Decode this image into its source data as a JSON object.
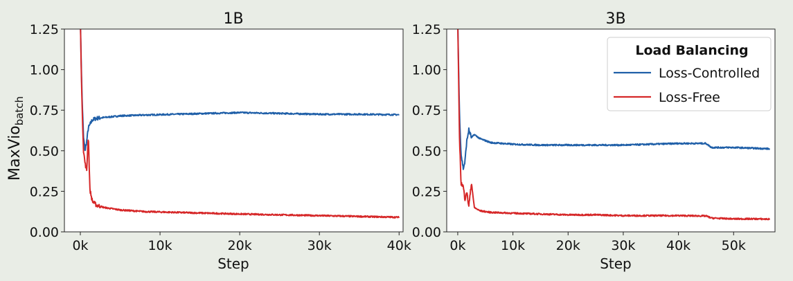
{
  "figure": {
    "ylabel_main": "MaxVio",
    "ylabel_sub": "batch"
  },
  "legend": {
    "title": "Load Balancing"
  },
  "colors": {
    "loss_controlled": "#1f5fa8",
    "loss_free": "#d62728",
    "background": "#e9ede6"
  },
  "chart_data": [
    {
      "type": "line",
      "title": "1B",
      "xlabel": "Step",
      "ylabel": "MaxVio_batch",
      "xlim": [
        -2000,
        40500
      ],
      "ylim": [
        0,
        1.25
      ],
      "xticks": [
        0,
        10000,
        20000,
        30000,
        40000
      ],
      "xtick_labels": [
        "0k",
        "10k",
        "20k",
        "30k",
        "40k"
      ],
      "yticks": [
        0,
        0.25,
        0.5,
        0.75,
        1.0,
        1.25
      ],
      "ytick_labels": [
        "0.00",
        "0.25",
        "0.50",
        "0.75",
        "1.00",
        "1.25"
      ],
      "grid": false,
      "series": [
        {
          "name": "Loss-Controlled",
          "x": [
            0,
            200,
            400,
            600,
            800,
            1000,
            1200,
            1500,
            2000,
            3000,
            5000,
            8000,
            12000,
            16000,
            20000,
            25000,
            30000,
            35000,
            40000
          ],
          "y": [
            1.3,
            0.85,
            0.58,
            0.5,
            0.56,
            0.64,
            0.66,
            0.69,
            0.7,
            0.705,
            0.715,
            0.72,
            0.725,
            0.73,
            0.735,
            0.73,
            0.725,
            0.725,
            0.722
          ]
        },
        {
          "name": "Loss-Free",
          "x": [
            0,
            200,
            400,
            600,
            800,
            1000,
            1200,
            1500,
            2000,
            3000,
            5000,
            8000,
            12000,
            16000,
            20000,
            25000,
            30000,
            35000,
            40000
          ],
          "y": [
            1.3,
            0.8,
            0.5,
            0.42,
            0.38,
            0.6,
            0.26,
            0.19,
            0.165,
            0.15,
            0.135,
            0.125,
            0.12,
            0.115,
            0.11,
            0.105,
            0.1,
            0.095,
            0.09
          ]
        }
      ]
    },
    {
      "type": "line",
      "title": "3B",
      "xlabel": "Step",
      "ylabel": "",
      "xlim": [
        -2000,
        57500
      ],
      "ylim": [
        0,
        1.25
      ],
      "xticks": [
        0,
        10000,
        20000,
        30000,
        40000,
        50000
      ],
      "xtick_labels": [
        "0k",
        "10k",
        "20k",
        "30k",
        "40k",
        "50k"
      ],
      "yticks": [
        0,
        0.25,
        0.5,
        0.75,
        1.0,
        1.25
      ],
      "ytick_labels": [
        "0.00",
        "0.25",
        "0.50",
        "0.75",
        "1.00",
        "1.25"
      ],
      "grid": false,
      "legend": {
        "placement": "top-right",
        "title": "Load Balancing"
      },
      "series": [
        {
          "name": "Loss-Controlled",
          "x": [
            0,
            300,
            600,
            1000,
            1300,
            1600,
            2000,
            2500,
            3000,
            4000,
            6000,
            10000,
            15000,
            20000,
            25000,
            30000,
            35000,
            40000,
            44000,
            45000,
            46000,
            50000,
            54000,
            56500
          ],
          "y": [
            1.3,
            0.75,
            0.48,
            0.39,
            0.43,
            0.55,
            0.63,
            0.58,
            0.6,
            0.575,
            0.55,
            0.54,
            0.535,
            0.535,
            0.535,
            0.535,
            0.54,
            0.545,
            0.545,
            0.545,
            0.52,
            0.52,
            0.515,
            0.512
          ]
        },
        {
          "name": "Loss-Free",
          "x": [
            0,
            300,
            600,
            1000,
            1300,
            1600,
            2000,
            2500,
            3000,
            4000,
            6000,
            10000,
            15000,
            20000,
            25000,
            30000,
            35000,
            40000,
            45000,
            46000,
            50000,
            54000,
            56500
          ],
          "y": [
            1.3,
            0.6,
            0.3,
            0.28,
            0.2,
            0.25,
            0.16,
            0.3,
            0.15,
            0.13,
            0.12,
            0.115,
            0.11,
            0.105,
            0.105,
            0.1,
            0.1,
            0.1,
            0.098,
            0.085,
            0.08,
            0.08,
            0.078
          ]
        }
      ]
    }
  ]
}
